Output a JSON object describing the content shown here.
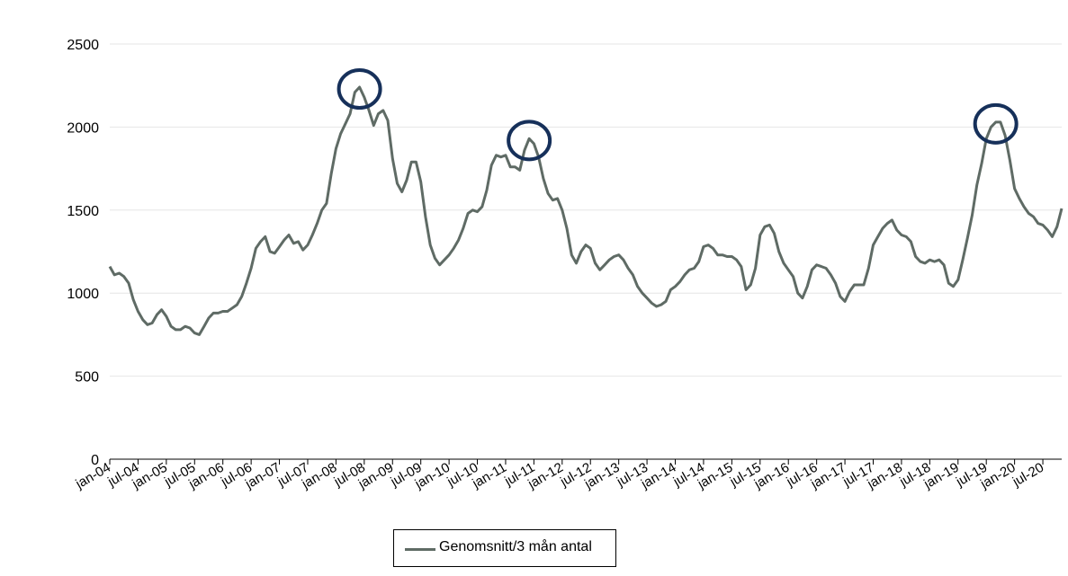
{
  "chart_data": {
    "type": "line",
    "title": "",
    "xlabel": "",
    "ylabel": "",
    "ylim": [
      0,
      2500
    ],
    "yticks": [
      "0",
      "500",
      "1000",
      "1500",
      "2000",
      "2500"
    ],
    "grid": true,
    "legend_position": "bottom",
    "line_color": "#5f6b65",
    "marker_color": "#16305a",
    "x_tick_labels": [
      "jan-04",
      "jul-04",
      "jan-05",
      "jul-05",
      "jan-06",
      "jul-06",
      "jan-07",
      "jul-07",
      "jan-08",
      "jul-08",
      "jan-09",
      "jul-09",
      "jan-10",
      "jul-10",
      "jan-11",
      "jul-11",
      "jan-12",
      "jul-12",
      "jan-13",
      "jul-13",
      "jan-14",
      "jul-14",
      "jan-15",
      "jul-15",
      "jan-16",
      "jul-16",
      "jan-17",
      "jul-17",
      "jan-18",
      "jul-18",
      "jan-19",
      "jul-19",
      "jan-20",
      "jul-20"
    ],
    "series": [
      {
        "name": "Genomsnitt/3 mån antal",
        "values": [
          1160,
          1110,
          1120,
          1100,
          1060,
          960,
          890,
          840,
          810,
          820,
          870,
          900,
          860,
          800,
          780,
          780,
          800,
          790,
          760,
          750,
          800,
          850,
          880,
          880,
          890,
          890,
          910,
          930,
          980,
          1060,
          1150,
          1270,
          1310,
          1340,
          1250,
          1240,
          1280,
          1320,
          1350,
          1300,
          1310,
          1260,
          1290,
          1350,
          1420,
          1500,
          1540,
          1720,
          1870,
          1960,
          2020,
          2080,
          2210,
          2240,
          2180,
          2100,
          2010,
          2080,
          2100,
          2040,
          1810,
          1660,
          1610,
          1680,
          1790,
          1790,
          1670,
          1460,
          1290,
          1210,
          1170,
          1200,
          1230,
          1270,
          1320,
          1390,
          1480,
          1500,
          1490,
          1520,
          1620,
          1770,
          1830,
          1820,
          1830,
          1760,
          1760,
          1740,
          1860,
          1930,
          1900,
          1820,
          1690,
          1600,
          1560,
          1570,
          1500,
          1390,
          1230,
          1180,
          1250,
          1290,
          1270,
          1180,
          1140,
          1170,
          1200,
          1220,
          1230,
          1200,
          1150,
          1110,
          1040,
          1000,
          970,
          940,
          920,
          930,
          950,
          1020,
          1040,
          1070,
          1110,
          1140,
          1150,
          1190,
          1280,
          1290,
          1270,
          1230,
          1230,
          1220,
          1220,
          1200,
          1160,
          1020,
          1050,
          1150,
          1350,
          1400,
          1410,
          1360,
          1250,
          1180,
          1140,
          1100,
          1000,
          970,
          1040,
          1140,
          1170,
          1160,
          1150,
          1110,
          1060,
          980,
          950,
          1010,
          1050,
          1050,
          1050,
          1150,
          1290,
          1340,
          1390,
          1420,
          1440,
          1380,
          1350,
          1340,
          1310,
          1220,
          1190,
          1180,
          1200,
          1190,
          1200,
          1170,
          1060,
          1040,
          1080,
          1200,
          1330,
          1470,
          1650,
          1780,
          1930,
          2000,
          2030,
          2030,
          1950,
          1800,
          1630,
          1570,
          1520,
          1480,
          1460,
          1420,
          1410,
          1380,
          1340,
          1400,
          1510
        ]
      }
    ],
    "highlighted_peaks": [
      "jul-08",
      "jul-11",
      "jul-19"
    ]
  },
  "legend": {
    "label": "Genomsnitt/3 mån antal"
  }
}
